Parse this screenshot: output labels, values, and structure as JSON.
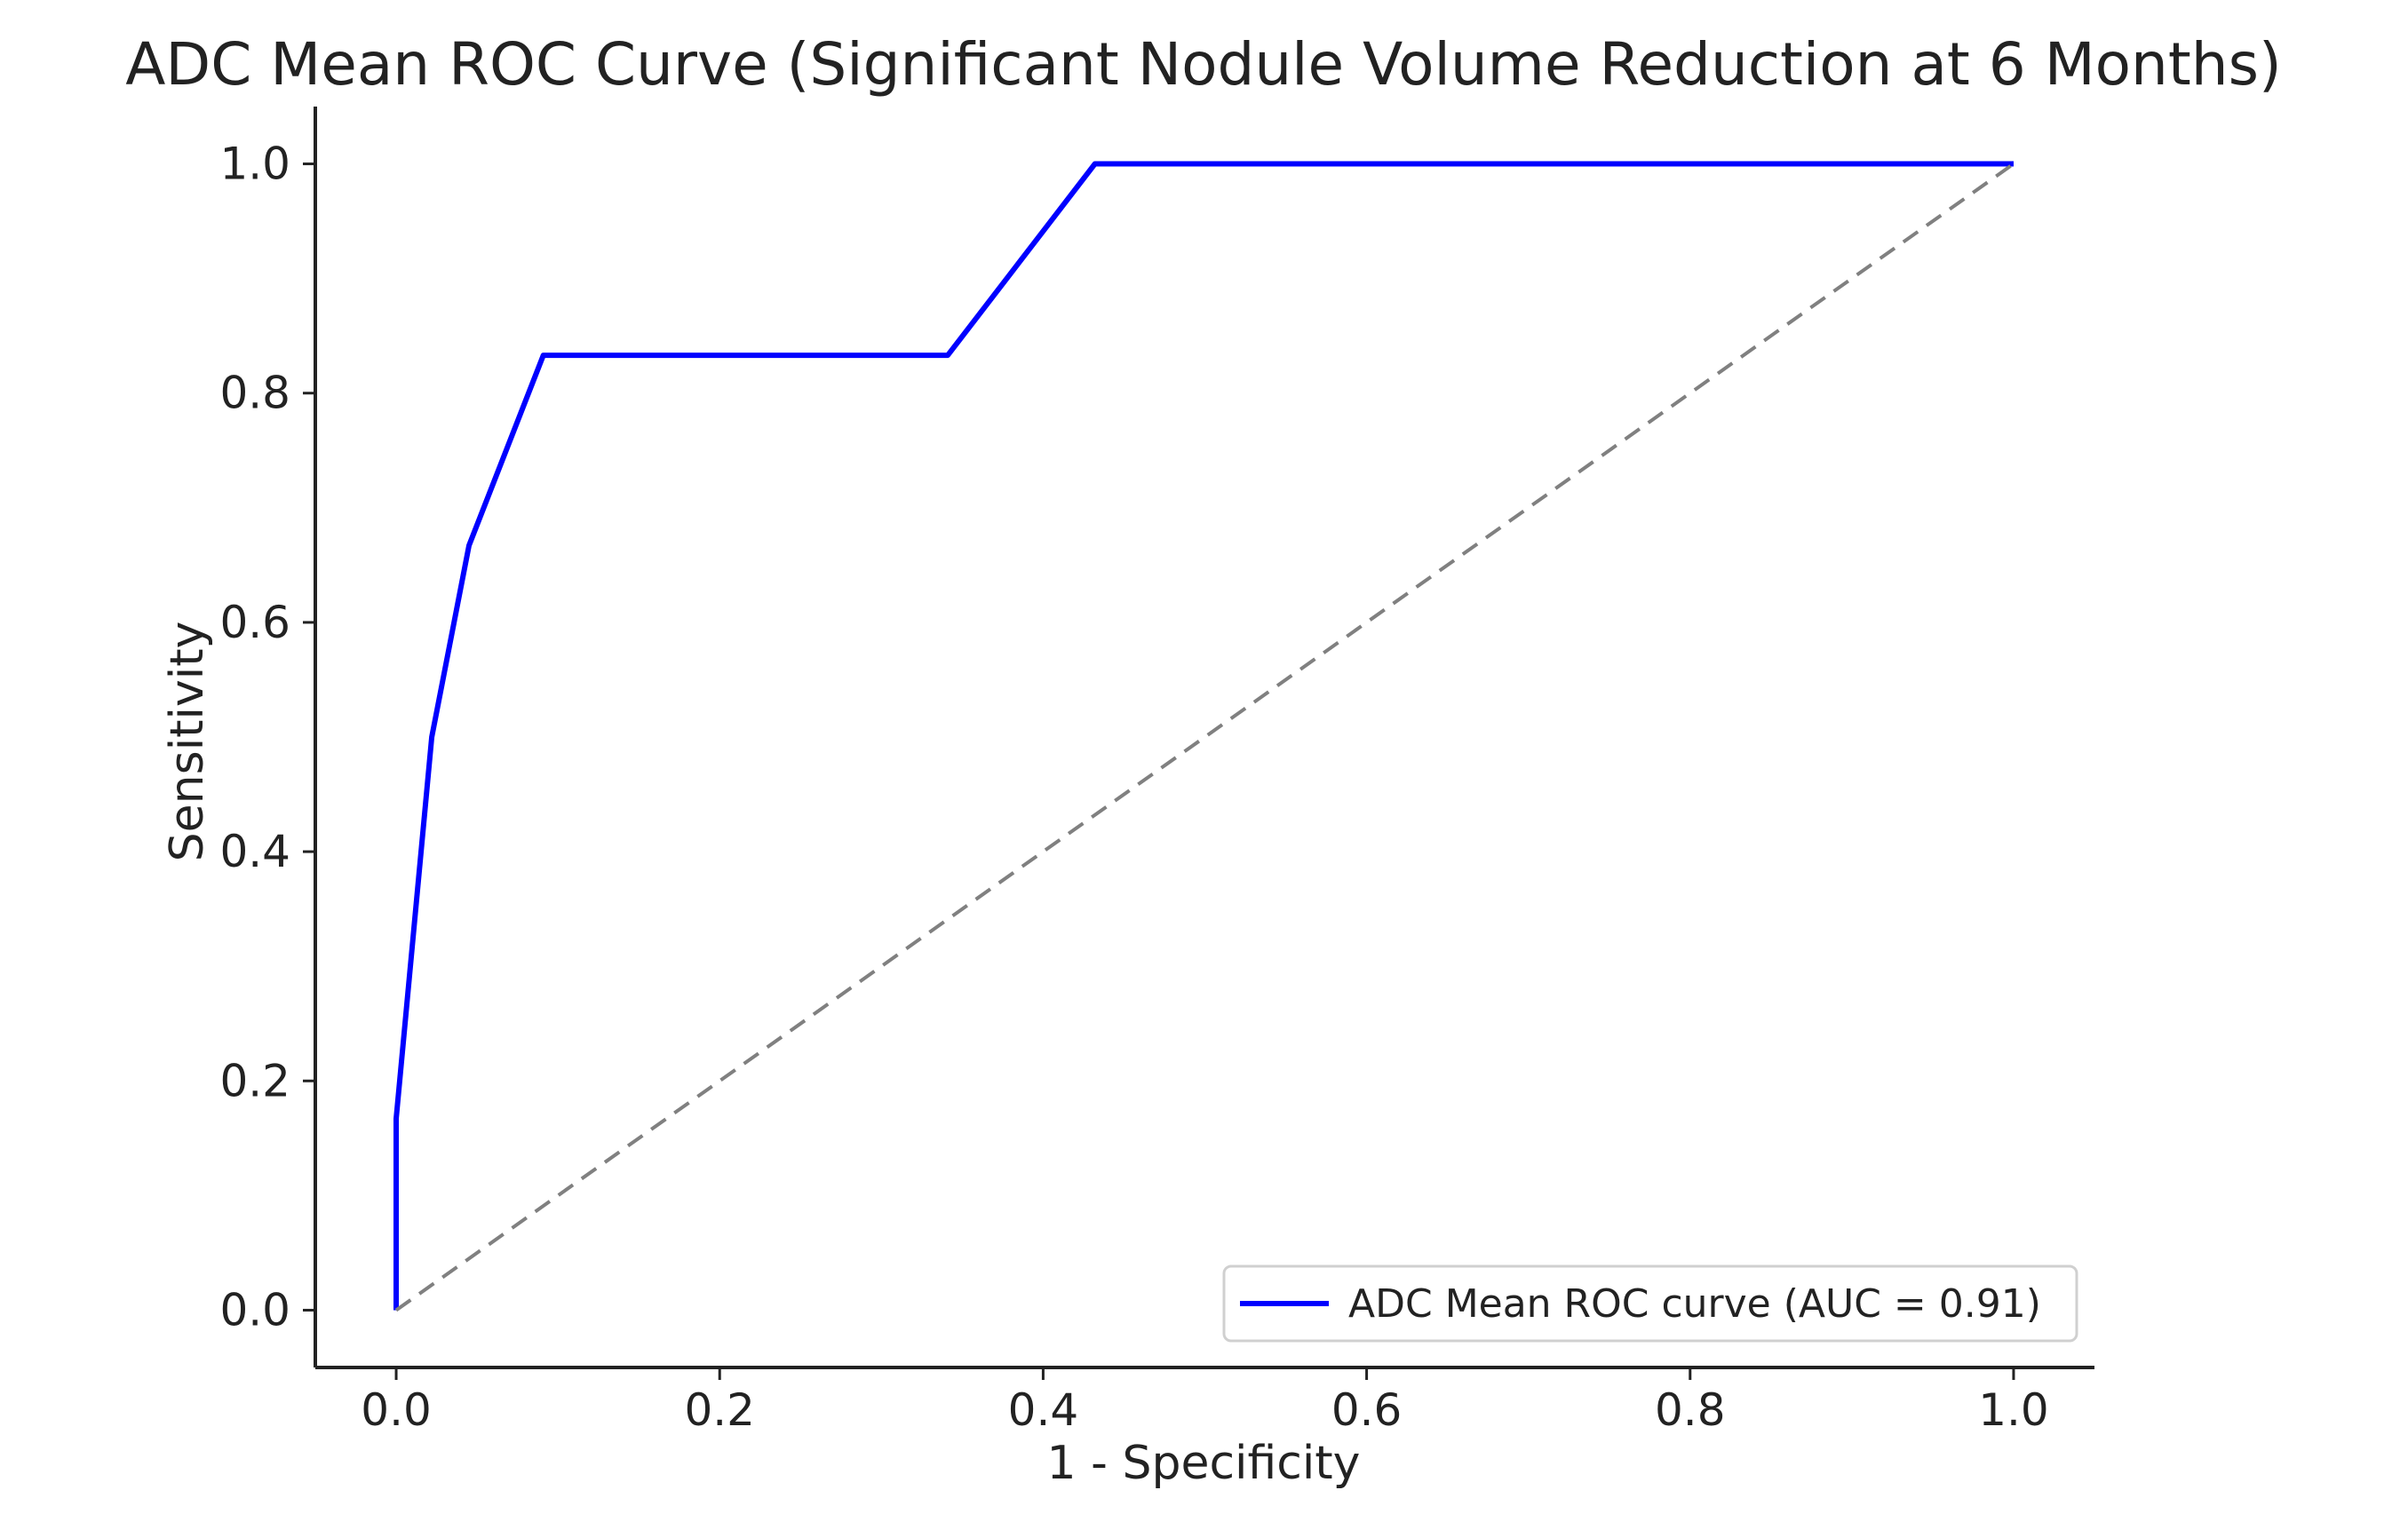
{
  "chart_data": {
    "type": "line",
    "title": "ADC Mean ROC Curve (Significant Nodule Volume Reduction at 6 Months)",
    "xlabel": "1 - Specificity",
    "ylabel": "Sensitivity",
    "xlim": [
      -0.05,
      1.05
    ],
    "ylim": [
      -0.05,
      1.05
    ],
    "xticks": [
      "0.0",
      "0.2",
      "0.4",
      "0.6",
      "0.8",
      "1.0"
    ],
    "yticks": [
      "0.0",
      "0.2",
      "0.4",
      "0.6",
      "0.8",
      "1.0"
    ],
    "xtick_values": [
      0.0,
      0.2,
      0.4,
      0.6,
      0.8,
      1.0
    ],
    "ytick_values": [
      0.0,
      0.2,
      0.4,
      0.6,
      0.8,
      1.0
    ],
    "grid": false,
    "legend_position": "lower-right",
    "series": [
      {
        "name": "ADC Mean ROC curve (AUC = 0.91)",
        "color": "#0000ff",
        "line_style": "solid",
        "x": [
          0.0,
          0.0,
          0.022,
          0.045,
          0.091,
          0.341,
          0.432,
          1.0
        ],
        "y": [
          0.0,
          0.167,
          0.5,
          0.667,
          0.833,
          0.833,
          1.0,
          1.0
        ]
      },
      {
        "name": "",
        "color": "#808080",
        "line_style": "dashed",
        "x": [
          0.0,
          1.0
        ],
        "y": [
          0.0,
          1.0
        ]
      }
    ]
  }
}
